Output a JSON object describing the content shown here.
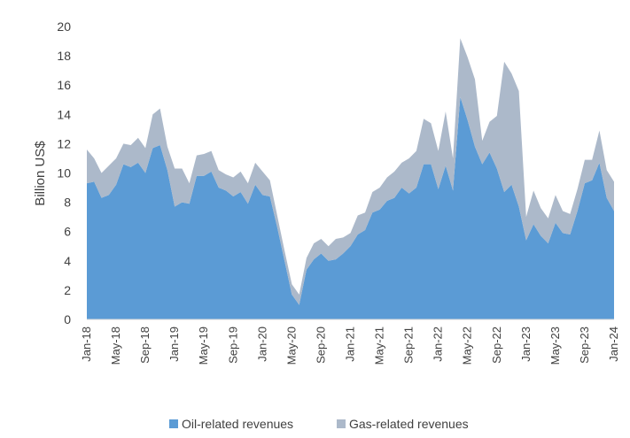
{
  "chart_data": {
    "type": "area",
    "stacked": true,
    "title": "",
    "xlabel": "",
    "ylabel": "Billion US$",
    "ylim": [
      0,
      20
    ],
    "y_ticks": [
      0,
      2,
      4,
      6,
      8,
      10,
      12,
      14,
      16,
      18,
      20
    ],
    "x": [
      "Jan-18",
      "Feb-18",
      "Mar-18",
      "Apr-18",
      "May-18",
      "Jun-18",
      "Jul-18",
      "Aug-18",
      "Sep-18",
      "Oct-18",
      "Nov-18",
      "Dec-18",
      "Jan-19",
      "Feb-19",
      "Mar-19",
      "Apr-19",
      "May-19",
      "Jun-19",
      "Jul-19",
      "Aug-19",
      "Sep-19",
      "Oct-19",
      "Nov-19",
      "Dec-19",
      "Jan-20",
      "Feb-20",
      "Mar-20",
      "Apr-20",
      "May-20",
      "Jun-20",
      "Jul-20",
      "Aug-20",
      "Sep-20",
      "Oct-20",
      "Nov-20",
      "Dec-20",
      "Jan-21",
      "Feb-21",
      "Mar-21",
      "Apr-21",
      "May-21",
      "Jun-21",
      "Jul-21",
      "Aug-21",
      "Sep-21",
      "Oct-21",
      "Nov-21",
      "Dec-21",
      "Jan-22",
      "Feb-22",
      "Mar-22",
      "Apr-22",
      "May-22",
      "Jun-22",
      "Jul-22",
      "Aug-22",
      "Sep-22",
      "Oct-22",
      "Nov-22",
      "Dec-22",
      "Jan-23",
      "Feb-23",
      "Mar-23",
      "Apr-23",
      "May-23",
      "Jun-23",
      "Jul-23",
      "Aug-23",
      "Sep-23",
      "Oct-23",
      "Nov-23",
      "Dec-23",
      "Jan-24"
    ],
    "x_tick_labels": [
      "Jan-18",
      "May-18",
      "Sep-18",
      "Jan-19",
      "May-19",
      "Sep-19",
      "Jan-20",
      "May-20",
      "Sep-20",
      "Jan-21",
      "May-21",
      "Sep-21",
      "Jan-22",
      "May-22",
      "Sep-22",
      "Jan-23",
      "May-23",
      "Sep-23",
      "Jan-24"
    ],
    "series": [
      {
        "name": "Oil-related revenues",
        "color": "#5b9bd5",
        "values": [
          9.3,
          9.4,
          8.3,
          8.5,
          9.2,
          10.6,
          10.4,
          10.7,
          10.0,
          11.7,
          11.9,
          10.2,
          7.7,
          8.0,
          7.9,
          9.8,
          9.8,
          10.1,
          9.0,
          8.8,
          8.4,
          8.7,
          7.9,
          9.2,
          8.5,
          8.4,
          6.3,
          4.0,
          1.7,
          1.0,
          3.4,
          4.1,
          4.5,
          4.0,
          4.1,
          4.5,
          5.0,
          5.8,
          6.1,
          7.3,
          7.5,
          8.1,
          8.3,
          9.0,
          8.6,
          9.0,
          10.6,
          10.6,
          8.9,
          10.5,
          8.8,
          15.2,
          13.6,
          11.8,
          10.6,
          11.4,
          10.3,
          8.7,
          9.2,
          7.7,
          5.4,
          6.5,
          5.7,
          5.2,
          6.6,
          5.9,
          5.8,
          7.4,
          9.3,
          9.5,
          10.7,
          8.3,
          7.4
        ]
      },
      {
        "name": "Gas-related revenues",
        "color": "#acb9ca",
        "values": [
          2.3,
          1.6,
          1.7,
          2.0,
          1.8,
          1.4,
          1.5,
          1.7,
          1.7,
          2.3,
          2.5,
          1.6,
          2.6,
          2.3,
          1.4,
          1.4,
          1.5,
          1.4,
          1.2,
          1.1,
          1.3,
          1.4,
          1.4,
          1.5,
          1.6,
          1.1,
          0.8,
          0.7,
          0.7,
          0.7,
          0.8,
          1.1,
          1.0,
          1.0,
          1.4,
          1.1,
          0.9,
          1.3,
          1.2,
          1.4,
          1.5,
          1.6,
          1.8,
          1.7,
          2.4,
          2.5,
          3.1,
          2.8,
          2.6,
          3.7,
          2.2,
          4.0,
          4.3,
          4.6,
          1.6,
          2.1,
          3.6,
          8.9,
          7.6,
          7.9,
          1.6,
          2.3,
          1.9,
          1.7,
          1.9,
          1.5,
          1.4,
          1.5,
          1.6,
          1.4,
          2.2,
          1.9,
          2.0
        ]
      }
    ],
    "legend": {
      "position": "bottom",
      "entries": [
        "Oil-related revenues",
        "Gas-related revenues"
      ]
    }
  }
}
